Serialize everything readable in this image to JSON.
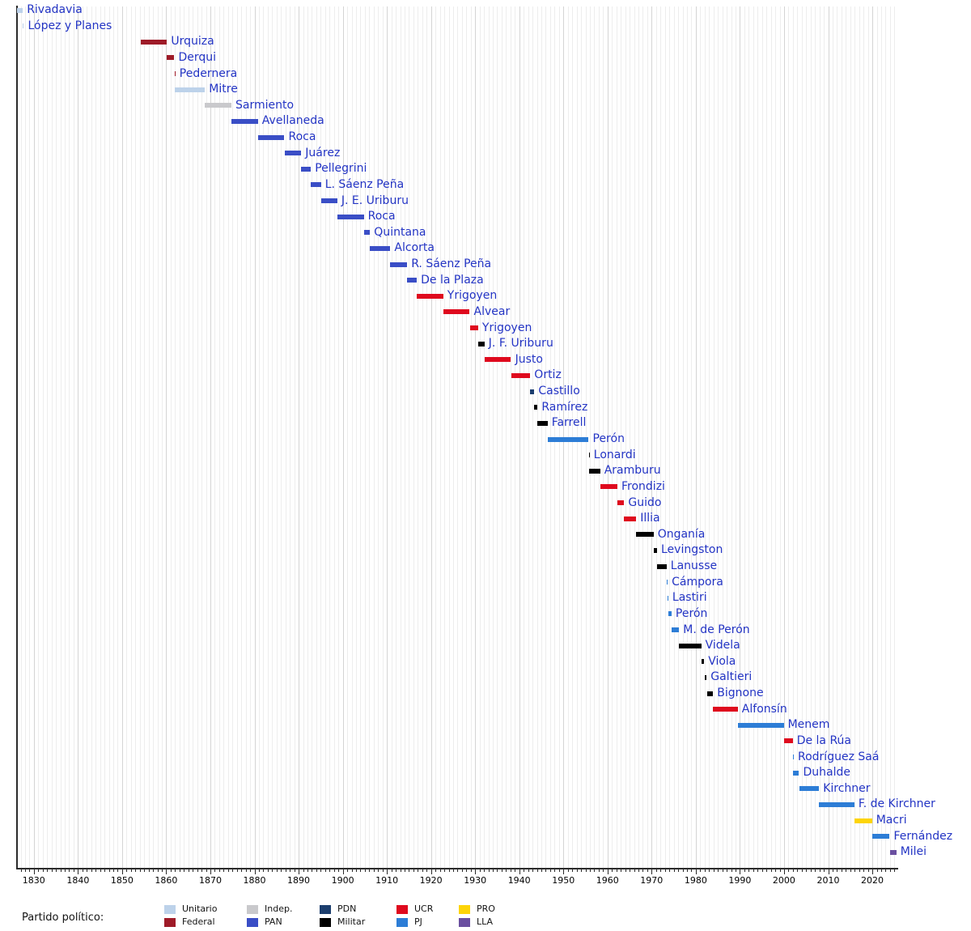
{
  "legend": {
    "label": "Partido político:",
    "columns": [
      [
        "Unitario",
        "Federal"
      ],
      [
        "Indep.",
        "PAN"
      ],
      [
        "PDN",
        "Militar"
      ],
      [
        "UCR",
        "PJ"
      ],
      [
        "PRO",
        "LLA"
      ]
    ]
  },
  "party_colors": {
    "Unitario": "#bdd2ea",
    "Federal": "#9e1b28",
    "Indep.": "#c9c9cc",
    "PAN": "#3a4ec6",
    "PDN": "#1c3e6e",
    "Militar": "#000000",
    "UCR": "#df0a1e",
    "PJ": "#2d7dd6",
    "PRO": "#fdd408",
    "LLA": "#6a4fa0"
  },
  "chart_data": {
    "type": "timeline",
    "x_axis": {
      "min": 1826,
      "max": 2025.5,
      "major_tick_interval": 10,
      "minor_tick_interval": 1,
      "tick_labels": [
        "1830",
        "1840",
        "1850",
        "1860",
        "1870",
        "1880",
        "1890",
        "1900",
        "1910",
        "1920",
        "1930",
        "1940",
        "1950",
        "1960",
        "1970",
        "1980",
        "1990",
        "2000",
        "2010",
        "2020"
      ],
      "grid": true
    },
    "legend_position": "bottom",
    "rows": [
      {
        "name": "Rivadavia",
        "party": "Unitario",
        "start": 1826.1,
        "end": 1827.5
      },
      {
        "name": "López y Planes",
        "party": "Unitario",
        "start": 1827.5,
        "end": 1827.63
      },
      {
        "name": "Urquiza",
        "party": "Federal",
        "start": 1854.17,
        "end": 1860.17
      },
      {
        "name": "Derqui",
        "party": "Federal",
        "start": 1860.17,
        "end": 1861.84
      },
      {
        "name": "Pedernera",
        "party": "Federal",
        "start": 1861.84,
        "end": 1861.95
      },
      {
        "name": "Mitre",
        "party": "Unitario",
        "start": 1861.95,
        "end": 1868.78
      },
      {
        "name": "Sarmiento",
        "party": "Indep.",
        "start": 1868.78,
        "end": 1874.78
      },
      {
        "name": "Avellaneda",
        "party": "PAN",
        "start": 1874.78,
        "end": 1880.78
      },
      {
        "name": "Roca",
        "party": "PAN",
        "start": 1880.78,
        "end": 1886.78
      },
      {
        "name": "Juárez",
        "party": "PAN",
        "start": 1886.78,
        "end": 1890.6
      },
      {
        "name": "Pellegrini",
        "party": "PAN",
        "start": 1890.6,
        "end": 1892.78
      },
      {
        "name": "L. Sáenz Peña",
        "party": "PAN",
        "start": 1892.78,
        "end": 1895.07
      },
      {
        "name": "J. E. Uriburu",
        "party": "PAN",
        "start": 1895.07,
        "end": 1898.78
      },
      {
        "name": "Roca",
        "party": "PAN",
        "start": 1898.78,
        "end": 1904.78
      },
      {
        "name": "Quintana",
        "party": "PAN",
        "start": 1904.78,
        "end": 1906.19
      },
      {
        "name": "Alcorta",
        "party": "PAN",
        "start": 1906.19,
        "end": 1910.78
      },
      {
        "name": "R. Sáenz Peña",
        "party": "PAN",
        "start": 1910.78,
        "end": 1914.6
      },
      {
        "name": "De la Plaza",
        "party": "PAN",
        "start": 1914.6,
        "end": 1916.78
      },
      {
        "name": "Yrigoyen",
        "party": "UCR",
        "start": 1916.78,
        "end": 1922.78
      },
      {
        "name": "Alvear",
        "party": "UCR",
        "start": 1922.78,
        "end": 1928.78
      },
      {
        "name": "Yrigoyen",
        "party": "UCR",
        "start": 1928.78,
        "end": 1930.68
      },
      {
        "name": "J. F. Uriburu",
        "party": "Militar",
        "start": 1930.68,
        "end": 1932.14
      },
      {
        "name": "Justo",
        "party": "UCR",
        "start": 1932.14,
        "end": 1938.14
      },
      {
        "name": "Ortiz",
        "party": "UCR",
        "start": 1938.14,
        "end": 1942.49
      },
      {
        "name": "Castillo",
        "party": "PDN",
        "start": 1942.49,
        "end": 1943.42
      },
      {
        "name": "Ramírez",
        "party": "Militar",
        "start": 1943.42,
        "end": 1944.16
      },
      {
        "name": "Farrell",
        "party": "Militar",
        "start": 1944.16,
        "end": 1946.42
      },
      {
        "name": "Perón",
        "party": "PJ",
        "start": 1946.42,
        "end": 1955.73
      },
      {
        "name": "Lonardi",
        "party": "Militar",
        "start": 1955.73,
        "end": 1955.87
      },
      {
        "name": "Aramburu",
        "party": "Militar",
        "start": 1955.87,
        "end": 1958.33
      },
      {
        "name": "Frondizi",
        "party": "UCR",
        "start": 1958.33,
        "end": 1962.24
      },
      {
        "name": "Guido",
        "party": "UCR",
        "start": 1962.24,
        "end": 1963.78
      },
      {
        "name": "Illia",
        "party": "UCR",
        "start": 1963.78,
        "end": 1966.49
      },
      {
        "name": "Onganía",
        "party": "Militar",
        "start": 1966.49,
        "end": 1970.44
      },
      {
        "name": "Levingston",
        "party": "Militar",
        "start": 1970.46,
        "end": 1971.23
      },
      {
        "name": "Lanusse",
        "party": "Militar",
        "start": 1971.23,
        "end": 1973.39
      },
      {
        "name": "Cámpora",
        "party": "PJ",
        "start": 1973.39,
        "end": 1973.53
      },
      {
        "name": "Lastiri",
        "party": "PJ",
        "start": 1973.53,
        "end": 1973.78
      },
      {
        "name": "Perón",
        "party": "PJ",
        "start": 1973.78,
        "end": 1974.5
      },
      {
        "name": "M. de Perón",
        "party": "PJ",
        "start": 1974.5,
        "end": 1976.23
      },
      {
        "name": "Videla",
        "party": "Militar",
        "start": 1976.23,
        "end": 1981.24
      },
      {
        "name": "Viola",
        "party": "Militar",
        "start": 1981.24,
        "end": 1981.89
      },
      {
        "name": "Galtieri",
        "party": "Militar",
        "start": 1981.95,
        "end": 1982.46
      },
      {
        "name": "Bignone",
        "party": "Militar",
        "start": 1982.5,
        "end": 1983.94
      },
      {
        "name": "Alfonsín",
        "party": "UCR",
        "start": 1983.94,
        "end": 1989.52
      },
      {
        "name": "Menem",
        "party": "PJ",
        "start": 1989.52,
        "end": 1999.94
      },
      {
        "name": "De la Rúa",
        "party": "UCR",
        "start": 1999.94,
        "end": 2001.97
      },
      {
        "name": "Rodríguez Saá",
        "party": "PJ",
        "start": 2001.98,
        "end": 2002.0
      },
      {
        "name": "Duhalde",
        "party": "PJ",
        "start": 2002.01,
        "end": 2003.4
      },
      {
        "name": "Kirchner",
        "party": "PJ",
        "start": 2003.4,
        "end": 2007.94
      },
      {
        "name": "F. de Kirchner",
        "party": "PJ",
        "start": 2007.94,
        "end": 2015.94
      },
      {
        "name": "Macri",
        "party": "PRO",
        "start": 2015.94,
        "end": 2019.94
      },
      {
        "name": "Fernández",
        "party": "PJ",
        "start": 2019.94,
        "end": 2023.94
      },
      {
        "name": "Milei",
        "party": "LLA",
        "start": 2023.94,
        "end": 2025.45
      }
    ]
  }
}
